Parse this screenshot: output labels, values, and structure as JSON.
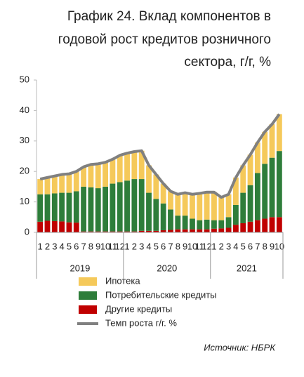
{
  "chart_data": {
    "type": "stacked-bar-line",
    "title": [
      "График 24. Вклад компонентов в",
      "годовой рост кредитов розничного",
      "сектора, г/г, %"
    ],
    "categories": [
      "1",
      "2",
      "3",
      "4",
      "5",
      "6",
      "7",
      "8",
      "9",
      "10",
      "11",
      "12",
      "1",
      "2",
      "3",
      "4",
      "5",
      "6",
      "7",
      "8",
      "9",
      "10",
      "11",
      "12",
      "1",
      "2",
      "3",
      "4",
      "5",
      "6",
      "7",
      "8",
      "9",
      "10"
    ],
    "years": [
      "2019",
      "2020",
      "2021"
    ],
    "series": [
      {
        "name": "Другие кредиты",
        "color": "#c00000",
        "kind": "bar",
        "values": [
          3.5,
          3.8,
          3.7,
          3.6,
          3.3,
          3.2,
          0.3,
          0.3,
          0.3,
          0.3,
          0.3,
          0.3,
          0.3,
          0.3,
          0.5,
          0.5,
          0.5,
          0.7,
          0.8,
          1,
          1,
          1,
          1,
          1,
          1.2,
          1.3,
          1.5,
          2.5,
          3,
          3.5,
          4,
          4.5,
          5,
          5
        ]
      },
      {
        "name": "Потребительские кредиты",
        "color": "#2e7d3a",
        "kind": "bar",
        "values": [
          9,
          8.7,
          9.1,
          9.4,
          9.7,
          10.3,
          14.7,
          14.5,
          14.2,
          14.7,
          15.7,
          16.2,
          16.7,
          17.2,
          17,
          12.5,
          10.5,
          8.8,
          6.7,
          4.5,
          4.5,
          3.5,
          3,
          3.2,
          2.8,
          2.7,
          3.5,
          6.5,
          10,
          12,
          15.5,
          18,
          19.5,
          21.7
        ]
      },
      {
        "name": "Ипотека",
        "color": "#f5c95a",
        "kind": "bar",
        "values": [
          5,
          5.5,
          5.7,
          6,
          6.2,
          6.5,
          6.5,
          7.5,
          8,
          8,
          8,
          8.8,
          9,
          9,
          9.3,
          9,
          8,
          6.5,
          6,
          7,
          7.5,
          8,
          8.8,
          9,
          9.2,
          7.5,
          7.5,
          9,
          9,
          10,
          10,
          10.5,
          11,
          12.1
        ]
      },
      {
        "name": "Темп роста г/г. %",
        "color": "#808080",
        "kind": "line",
        "values": [
          17.5,
          18,
          18.5,
          19,
          19.2,
          20,
          21.5,
          22.3,
          22.5,
          23,
          24,
          25.3,
          26,
          26.5,
          26.8,
          22,
          19,
          16,
          13.5,
          12.5,
          13,
          12.5,
          12.8,
          13.2,
          13.2,
          11.5,
          12.5,
          18,
          22,
          25.5,
          29.5,
          33,
          35.5,
          38.8
        ]
      }
    ],
    "legend_order": [
      2,
      1,
      0,
      3
    ],
    "ylim": [
      0,
      50
    ],
    "yticks": [
      0,
      10,
      20,
      30,
      40,
      50
    ],
    "grid": false,
    "source": "Источник: НБРК"
  }
}
